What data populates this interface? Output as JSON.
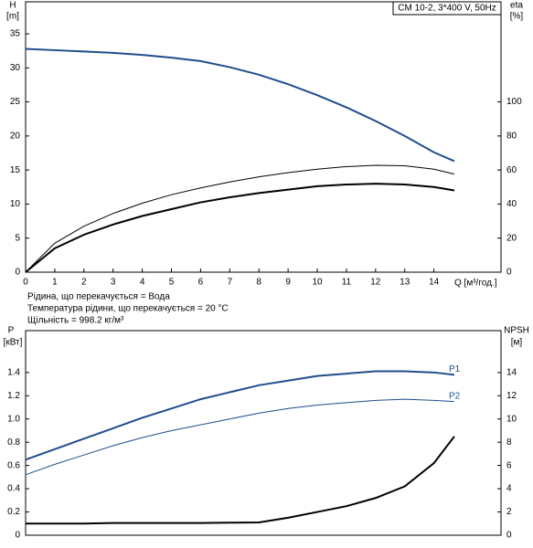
{
  "chart_data": [
    {
      "type": "line",
      "title": "CM 10-2, 3*400 V, 50Hz",
      "y_label": "H",
      "y_unit": "[m]",
      "y2_label": "eta",
      "y2_unit": "[%]",
      "x_label": "Q [м³/год.]",
      "annotations": [
        "Рідина, що перекачується = Вода",
        "Температура рідини, що перекачується = 20 °C",
        "Щільність = 998.2 кг/м³"
      ],
      "xlim": [
        0,
        16.3
      ],
      "xticks": [
        0,
        1,
        2,
        3,
        4,
        5,
        6,
        7,
        8,
        9,
        10,
        11,
        12,
        13,
        14
      ],
      "ylim": [
        0,
        39.7
      ],
      "yticks": [
        0,
        5,
        10,
        15,
        20,
        25,
        30,
        35
      ],
      "y2lim": [
        0,
        158.8
      ],
      "y2ticks": [
        0,
        20,
        40,
        60,
        80,
        100
      ],
      "x": [
        0,
        1,
        2,
        3,
        4,
        5,
        6,
        7,
        8,
        9,
        10,
        11,
        12,
        13,
        14,
        14.7
      ],
      "series": [
        {
          "color": "#1f4e8c",
          "values": [
            32.8,
            32.6,
            32.4,
            32.2,
            31.9,
            31.5,
            31.0,
            30.1,
            29.0,
            27.6,
            26.0,
            24.2,
            22.2,
            20.0,
            17.6,
            16.3
          ]
        },
        {
          "color": "#000000",
          "axis": "y2",
          "values": [
            0,
            17,
            27,
            34.5,
            40.5,
            45.5,
            49.5,
            53,
            56,
            58.5,
            60.5,
            62,
            62.8,
            62.5,
            60.5,
            57.6
          ]
        },
        {
          "color": "#000000",
          "axis": "y2",
          "values": [
            0,
            14,
            22,
            28,
            33,
            37,
            41,
            44,
            46.5,
            48.5,
            50.5,
            51.5,
            52,
            51.5,
            50,
            48
          ]
        }
      ]
    },
    {
      "type": "line",
      "y_label": "P",
      "y_unit": "[кВт]",
      "y2_label": "NPSH",
      "y2_unit": "[м]",
      "xlim": [
        0,
        16.3
      ],
      "ylim": [
        0,
        1.76
      ],
      "yticks": [
        0,
        0.2,
        0.4,
        0.6,
        0.8,
        {
          "value": 1,
          "label": "1.0"
        },
        1.2,
        1.4
      ],
      "y2lim": [
        0,
        17.6
      ],
      "y2ticks": [
        0,
        2,
        4,
        6,
        8,
        10,
        12,
        14
      ],
      "x": [
        0,
        1,
        2,
        3,
        4,
        5,
        6,
        7,
        8,
        9,
        10,
        11,
        12,
        13,
        14,
        14.7
      ],
      "series": [
        {
          "name": "P1",
          "color": "#1f4e8c",
          "values": [
            0.65,
            0.74,
            0.83,
            0.92,
            1.01,
            1.09,
            1.17,
            1.23,
            1.29,
            1.33,
            1.37,
            1.39,
            1.41,
            1.41,
            1.4,
            1.38
          ]
        },
        {
          "name": "P2",
          "color": "#1f4e8c",
          "values": [
            0.52,
            0.61,
            0.69,
            0.77,
            0.84,
            0.9,
            0.95,
            1.0,
            1.05,
            1.09,
            1.12,
            1.14,
            1.16,
            1.17,
            1.16,
            1.15
          ]
        },
        {
          "color": "#000000",
          "axis": "y2",
          "values": [
            1.0,
            1.0,
            1.0,
            1.05,
            1.05,
            1.05,
            1.05,
            1.08,
            1.1,
            1.5,
            2.0,
            2.5,
            3.2,
            4.2,
            6.2,
            8.5
          ]
        }
      ]
    }
  ]
}
